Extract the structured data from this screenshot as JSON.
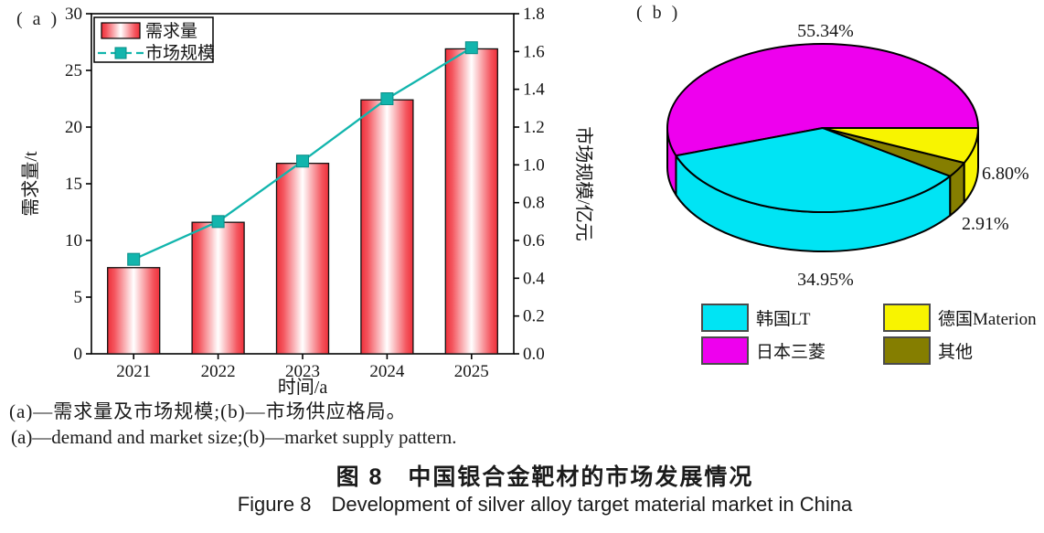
{
  "figure": {
    "panel_a_label": "( a )",
    "panel_b_label": "( b )"
  },
  "chart_data": [
    {
      "type": "bar",
      "panel": "a",
      "description": "demand and market size of silver alloy targets in China",
      "categories": [
        "2021",
        "2022",
        "2023",
        "2024",
        "2025"
      ],
      "series": [
        {
          "id": "demand",
          "name": "需求量",
          "kind": "bar",
          "axis": "left",
          "values": [
            7.6,
            11.6,
            16.8,
            22.4,
            26.9
          ]
        },
        {
          "id": "market-size",
          "name": "市场规模",
          "kind": "line",
          "axis": "right",
          "values": [
            0.5,
            0.7,
            1.02,
            1.35,
            1.62
          ]
        }
      ],
      "left_axis": {
        "label": "需求量/t",
        "min": 0,
        "max": 30,
        "step": 5
      },
      "right_axis": {
        "label": "市场规模/亿元",
        "min": 0,
        "max": 1.8,
        "step": 0.2,
        "decimals": 1
      },
      "x_axis_label": "时间/a",
      "colors": {
        "bar_edge": "#ee303a",
        "bar_mid": "#f4555e",
        "bar_center": "#ffffff",
        "line": "#12b5ad",
        "marker_stroke": "#0a8d86"
      },
      "legend_position": "top-left",
      "grid": false
    },
    {
      "type": "pie",
      "style": "3d",
      "panel": "b",
      "description": "market supply pattern",
      "start_angle_deg": 0,
      "slices": [
        {
          "id": "japan-mitsubishi",
          "name": "日本三菱",
          "value": 55.34,
          "label": "55.34%",
          "color": "#ee00ee"
        },
        {
          "id": "korea-lt",
          "name": "韩国LT",
          "value": 34.95,
          "label": "34.95%",
          "color": "#00e4f4"
        },
        {
          "id": "others",
          "name": "其他",
          "value": 2.91,
          "label": "2.91%",
          "color": "#857e00"
        },
        {
          "id": "germany-materion",
          "name": "德国Materion",
          "value": 6.8,
          "label": "6.80%",
          "color": "#f8f400"
        }
      ],
      "legend": [
        {
          "id": "korea-lt",
          "label": "韩国LT",
          "color": "#00e4f4"
        },
        {
          "id": "japan-mitsubishi",
          "label": "日本三菱",
          "color": "#ee00ee"
        },
        {
          "id": "germany-materion",
          "label": "德国Materion",
          "color": "#f8f400"
        },
        {
          "id": "others",
          "label": "其他",
          "color": "#857e00"
        }
      ],
      "legend_position": "bottom"
    }
  ],
  "captions": {
    "sub_zh": "(a)—需求量及市场规模;(b)—市场供应格局。",
    "sub_en": "(a)—demand and market size;(b)—market supply pattern.",
    "title_zh": "图 8 中国银合金靶材的市场发展情况",
    "title_en": "Figure 8 Development of silver alloy target material market in China"
  }
}
